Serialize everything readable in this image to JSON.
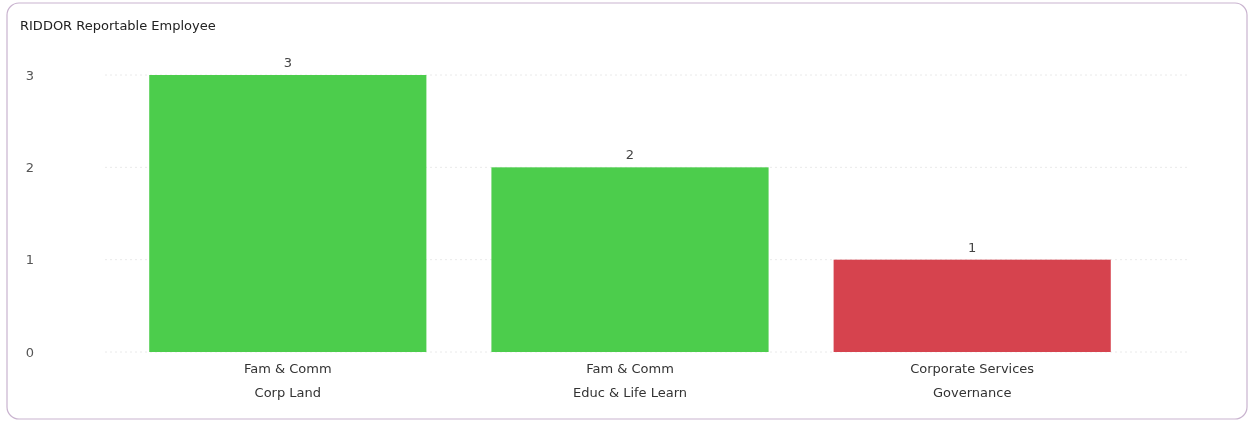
{
  "chart_data": {
    "type": "bar",
    "title": "RIDDOR Reportable Employee",
    "categories": [
      "Fam & Comm\nCorp Land",
      "Fam & Comm\nEduc & Life Learn",
      "Corporate Services\nGovernance"
    ],
    "values": [
      3,
      2,
      1
    ],
    "colors": [
      "#4ccd4c",
      "#4ccd4c",
      "#d6434e"
    ],
    "ylim": [
      0,
      3
    ],
    "yticks": [
      0,
      1,
      2,
      3
    ],
    "grid": "y",
    "data_labels": true
  }
}
